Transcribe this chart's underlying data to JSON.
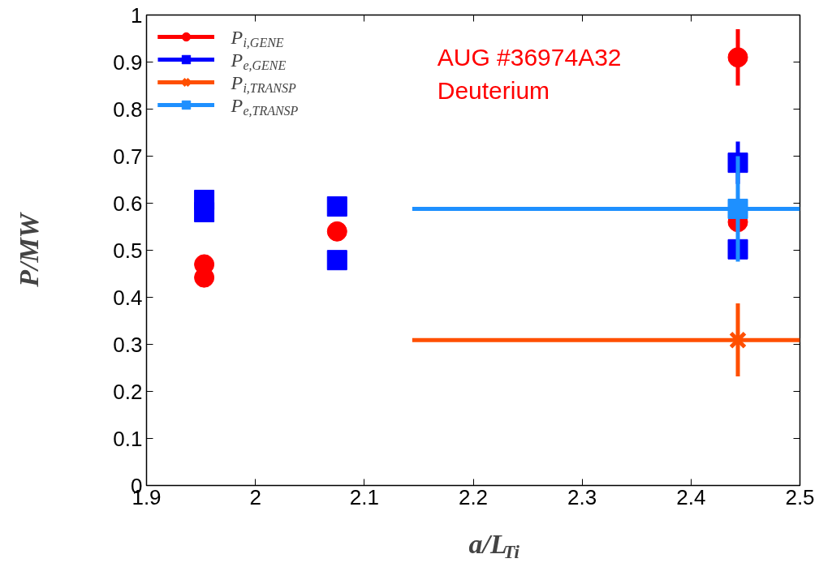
{
  "chart_data": {
    "type": "scatter",
    "xlabel": "a/L$_{Ti}$",
    "ylabel": "P/MW",
    "xlim": [
      1.9,
      2.5
    ],
    "ylim": [
      0,
      1
    ],
    "xticks": [
      1.9,
      2,
      2.1,
      2.2,
      2.3,
      2.4,
      2.5
    ],
    "yticks": [
      0,
      0.1,
      0.2,
      0.3,
      0.4,
      0.5,
      0.6,
      0.7,
      0.8,
      0.9,
      1
    ],
    "grid": false,
    "legend": "top left",
    "annotations": [
      "AUG #36974A32",
      "Deuterium"
    ],
    "series": [
      {
        "name": "P$_{i,GENE}$",
        "color": "#ff0000",
        "marker": "circle",
        "x": [
          1.953,
          1.953,
          2.075,
          2.443,
          2.443
        ],
        "values": [
          0.47,
          0.442,
          0.54,
          0.91,
          0.56
        ],
        "errors": [
          null,
          null,
          0.02,
          0.06,
          null
        ]
      },
      {
        "name": "P$_{e,GENE}$",
        "color": "#0000ff",
        "marker": "square",
        "x": [
          1.953,
          1.953,
          2.075,
          2.075,
          2.443,
          2.443
        ],
        "values": [
          0.607,
          0.581,
          0.593,
          0.479,
          0.686,
          0.502
        ],
        "errors": [
          null,
          null,
          null,
          null,
          0.045,
          null
        ]
      },
      {
        "name": "P$_{i,TRANSP}$",
        "color": "#ff4f00",
        "marker": "cross",
        "x": [
          2.443
        ],
        "values": [
          0.309
        ],
        "errors": [
          [
            0.232,
            0.387
          ]
        ],
        "xerrors": [
          [
            2.144,
            2.5
          ]
        ]
      },
      {
        "name": "P$_{e,TRANSP}$",
        "color": "#1e90ff",
        "marker": "square",
        "x": [
          2.443
        ],
        "values": [
          0.588
        ],
        "errors": [
          [
            0.476,
            0.7
          ]
        ],
        "xerrors": [
          [
            2.144,
            2.5
          ]
        ]
      }
    ]
  }
}
